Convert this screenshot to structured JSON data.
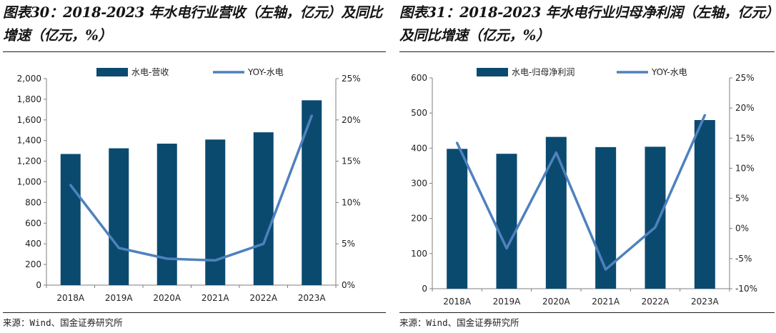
{
  "charts": [
    {
      "title": "图表30：2018-2023 年水电行业营收（左轴，亿元）及同比增速（亿元，%）",
      "source": "来源：Wind、国金证券研究所"
    },
    {
      "title": "图表31：2018-2023 年水电行业归母净利润（左轴，亿元）及同比增速（亿元，%）",
      "source": "来源：Wind、国金证券研究所"
    }
  ],
  "colors": {
    "bar": "#0b4a6f",
    "line": "#4f81bd",
    "axis": "#7f7f7f"
  },
  "chart_data": [
    {
      "type": "bar",
      "categories": [
        "2018A",
        "2019A",
        "2020A",
        "2021A",
        "2022A",
        "2023A"
      ],
      "series": [
        {
          "name": "水电-营收",
          "type": "bar",
          "axis": "left",
          "values": [
            1270,
            1325,
            1370,
            1410,
            1480,
            1790
          ]
        },
        {
          "name": "YOY-水电",
          "type": "line",
          "axis": "right",
          "values": [
            12.1,
            4.5,
            3.2,
            3.0,
            5.0,
            20.5
          ]
        }
      ],
      "ylim": [
        0,
        2000
      ],
      "yticks": [
        0,
        200,
        400,
        600,
        800,
        1000,
        1200,
        1400,
        1600,
        1800,
        2000
      ],
      "ytick_labels": [
        "0",
        "200",
        "400",
        "600",
        "800",
        "1,000",
        "1,200",
        "1,400",
        "1,600",
        "1,800",
        "2,000"
      ],
      "y2lim": [
        0,
        25
      ],
      "y2ticks": [
        0,
        5,
        10,
        15,
        20,
        25
      ],
      "y2tick_labels": [
        "0%",
        "5%",
        "10%",
        "15%",
        "20%",
        "25%"
      ],
      "legend_position": "top-center",
      "grid": false
    },
    {
      "type": "bar",
      "categories": [
        "2018A",
        "2019A",
        "2020A",
        "2021A",
        "2022A",
        "2023A"
      ],
      "series": [
        {
          "name": "水电-归母净利润",
          "type": "bar",
          "axis": "left",
          "values": [
            398,
            384,
            432,
            403,
            404,
            480
          ]
        },
        {
          "name": "YOY-水电",
          "type": "line",
          "axis": "right",
          "values": [
            14.2,
            -3.3,
            12.6,
            -6.8,
            0.2,
            18.8
          ]
        }
      ],
      "ylim": [
        0,
        600
      ],
      "yticks": [
        0,
        100,
        200,
        300,
        400,
        500,
        600
      ],
      "ytick_labels": [
        "0",
        "100",
        "200",
        "300",
        "400",
        "500",
        "600"
      ],
      "y2lim": [
        -10,
        25
      ],
      "y2ticks": [
        -10,
        -5,
        0,
        5,
        10,
        15,
        20,
        25
      ],
      "y2tick_labels": [
        "-10%",
        "-5%",
        "0%",
        "5%",
        "10%",
        "15%",
        "20%",
        "25%"
      ],
      "legend_position": "top-center",
      "grid": false
    }
  ]
}
